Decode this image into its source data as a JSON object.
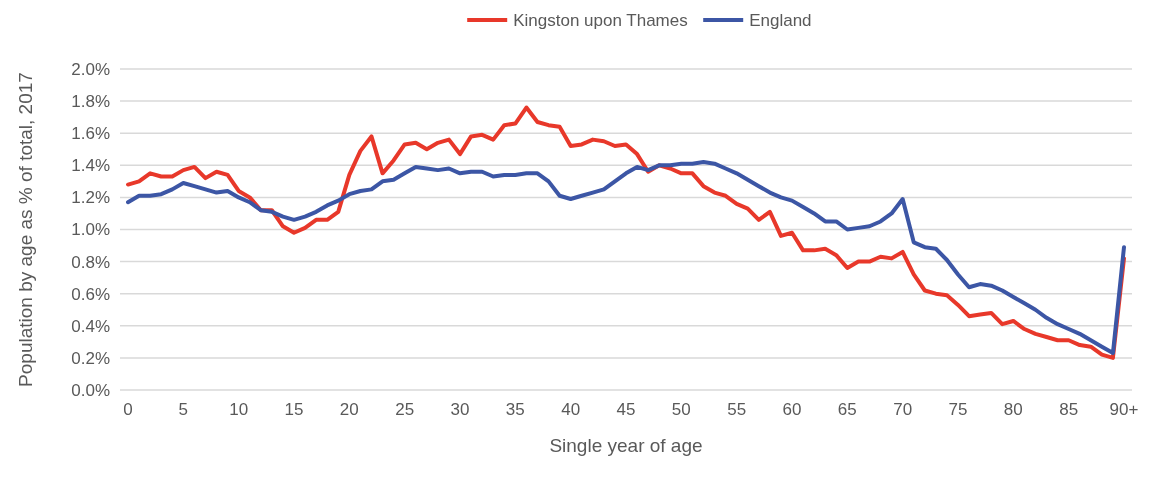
{
  "chart_data": {
    "type": "line",
    "xlabel": "Single year of age",
    "ylabel": "Population by age as % of total, 2017",
    "categories": [
      "0",
      null,
      null,
      null,
      null,
      "5",
      null,
      null,
      null,
      null,
      "10",
      null,
      null,
      null,
      null,
      "15",
      null,
      null,
      null,
      null,
      "20",
      null,
      null,
      null,
      null,
      "25",
      null,
      null,
      null,
      null,
      "30",
      null,
      null,
      null,
      null,
      "35",
      null,
      null,
      null,
      null,
      "40",
      null,
      null,
      null,
      null,
      "45",
      null,
      null,
      null,
      null,
      "50",
      null,
      null,
      null,
      null,
      "55",
      null,
      null,
      null,
      null,
      "60",
      null,
      null,
      null,
      null,
      "65",
      null,
      null,
      null,
      null,
      "70",
      null,
      null,
      null,
      null,
      "75",
      null,
      null,
      null,
      null,
      "80",
      null,
      null,
      null,
      null,
      "85",
      null,
      null,
      null,
      null,
      "90+"
    ],
    "series": [
      {
        "name": "Kingston upon Thames",
        "color": "#e8382a",
        "values": [
          1.28,
          1.3,
          1.35,
          1.33,
          1.33,
          1.37,
          1.39,
          1.32,
          1.36,
          1.34,
          1.24,
          1.2,
          1.12,
          1.12,
          1.02,
          0.98,
          1.01,
          1.06,
          1.06,
          1.11,
          1.34,
          1.49,
          1.58,
          1.35,
          1.43,
          1.53,
          1.54,
          1.5,
          1.54,
          1.56,
          1.47,
          1.58,
          1.59,
          1.56,
          1.65,
          1.66,
          1.76,
          1.67,
          1.65,
          1.64,
          1.52,
          1.53,
          1.56,
          1.55,
          1.52,
          1.53,
          1.47,
          1.36,
          1.4,
          1.38,
          1.35,
          1.35,
          1.27,
          1.23,
          1.21,
          1.16,
          1.13,
          1.06,
          1.11,
          0.96,
          0.98,
          0.87,
          0.87,
          0.88,
          0.84,
          0.76,
          0.8,
          0.8,
          0.83,
          0.82,
          0.86,
          0.72,
          0.62,
          0.6,
          0.59,
          0.53,
          0.46,
          0.47,
          0.48,
          0.41,
          0.43,
          0.38,
          0.35,
          0.33,
          0.31,
          0.31,
          0.28,
          0.27,
          0.22,
          0.2,
          0.82
        ]
      },
      {
        "name": "England",
        "color": "#3c56a5",
        "values": [
          1.17,
          1.21,
          1.21,
          1.22,
          1.25,
          1.29,
          1.27,
          1.25,
          1.23,
          1.24,
          1.2,
          1.17,
          1.12,
          1.11,
          1.08,
          1.06,
          1.08,
          1.11,
          1.15,
          1.18,
          1.22,
          1.24,
          1.25,
          1.3,
          1.31,
          1.35,
          1.39,
          1.38,
          1.37,
          1.38,
          1.35,
          1.36,
          1.36,
          1.33,
          1.34,
          1.34,
          1.35,
          1.35,
          1.3,
          1.21,
          1.19,
          1.21,
          1.23,
          1.25,
          1.3,
          1.35,
          1.39,
          1.37,
          1.4,
          1.4,
          1.41,
          1.41,
          1.42,
          1.41,
          1.38,
          1.35,
          1.31,
          1.27,
          1.23,
          1.2,
          1.18,
          1.14,
          1.1,
          1.05,
          1.05,
          1.0,
          1.01,
          1.02,
          1.05,
          1.1,
          1.19,
          0.92,
          0.89,
          0.88,
          0.81,
          0.72,
          0.64,
          0.66,
          0.65,
          0.62,
          0.58,
          0.54,
          0.5,
          0.45,
          0.41,
          0.38,
          0.35,
          0.31,
          0.27,
          0.23,
          0.89
        ]
      }
    ],
    "ylim": [
      0,
      2
    ],
    "yticks": [
      {
        "value": 0,
        "label": "0.0%"
      },
      {
        "value": 0.2,
        "label": "0.2%"
      },
      {
        "value": 0.4,
        "label": "0.4%"
      },
      {
        "value": 0.6,
        "label": "0.6%"
      },
      {
        "value": 0.8,
        "label": "0.8%"
      },
      {
        "value": 1.0,
        "label": "1.0%"
      },
      {
        "value": 1.2,
        "label": "1.2%"
      },
      {
        "value": 1.4,
        "label": "1.4%"
      },
      {
        "value": 1.6,
        "label": "1.6%"
      },
      {
        "value": 1.8,
        "label": "1.8%"
      },
      {
        "value": 2.0,
        "label": "2.0%"
      }
    ],
    "grid": "y",
    "legend": "top",
    "marker": "none",
    "line_style": "solid"
  }
}
